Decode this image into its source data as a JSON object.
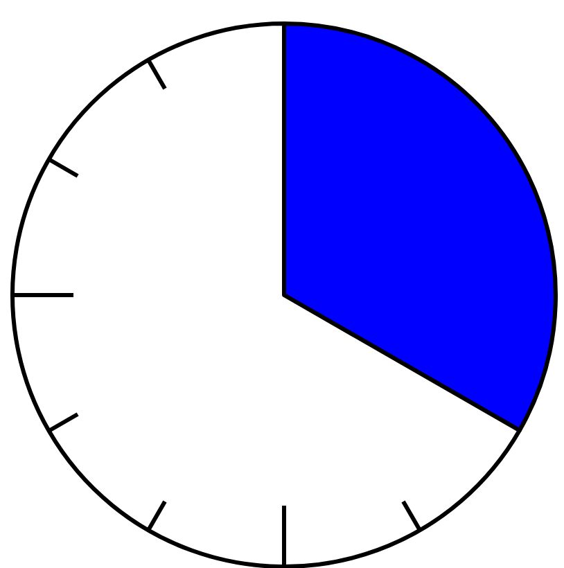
{
  "chart_data": {
    "type": "pie",
    "categories": [
      null,
      null
    ],
    "values": [
      33.3,
      66.7
    ],
    "colors": [
      "#0000ff",
      "#ffffff"
    ]
  }
}
